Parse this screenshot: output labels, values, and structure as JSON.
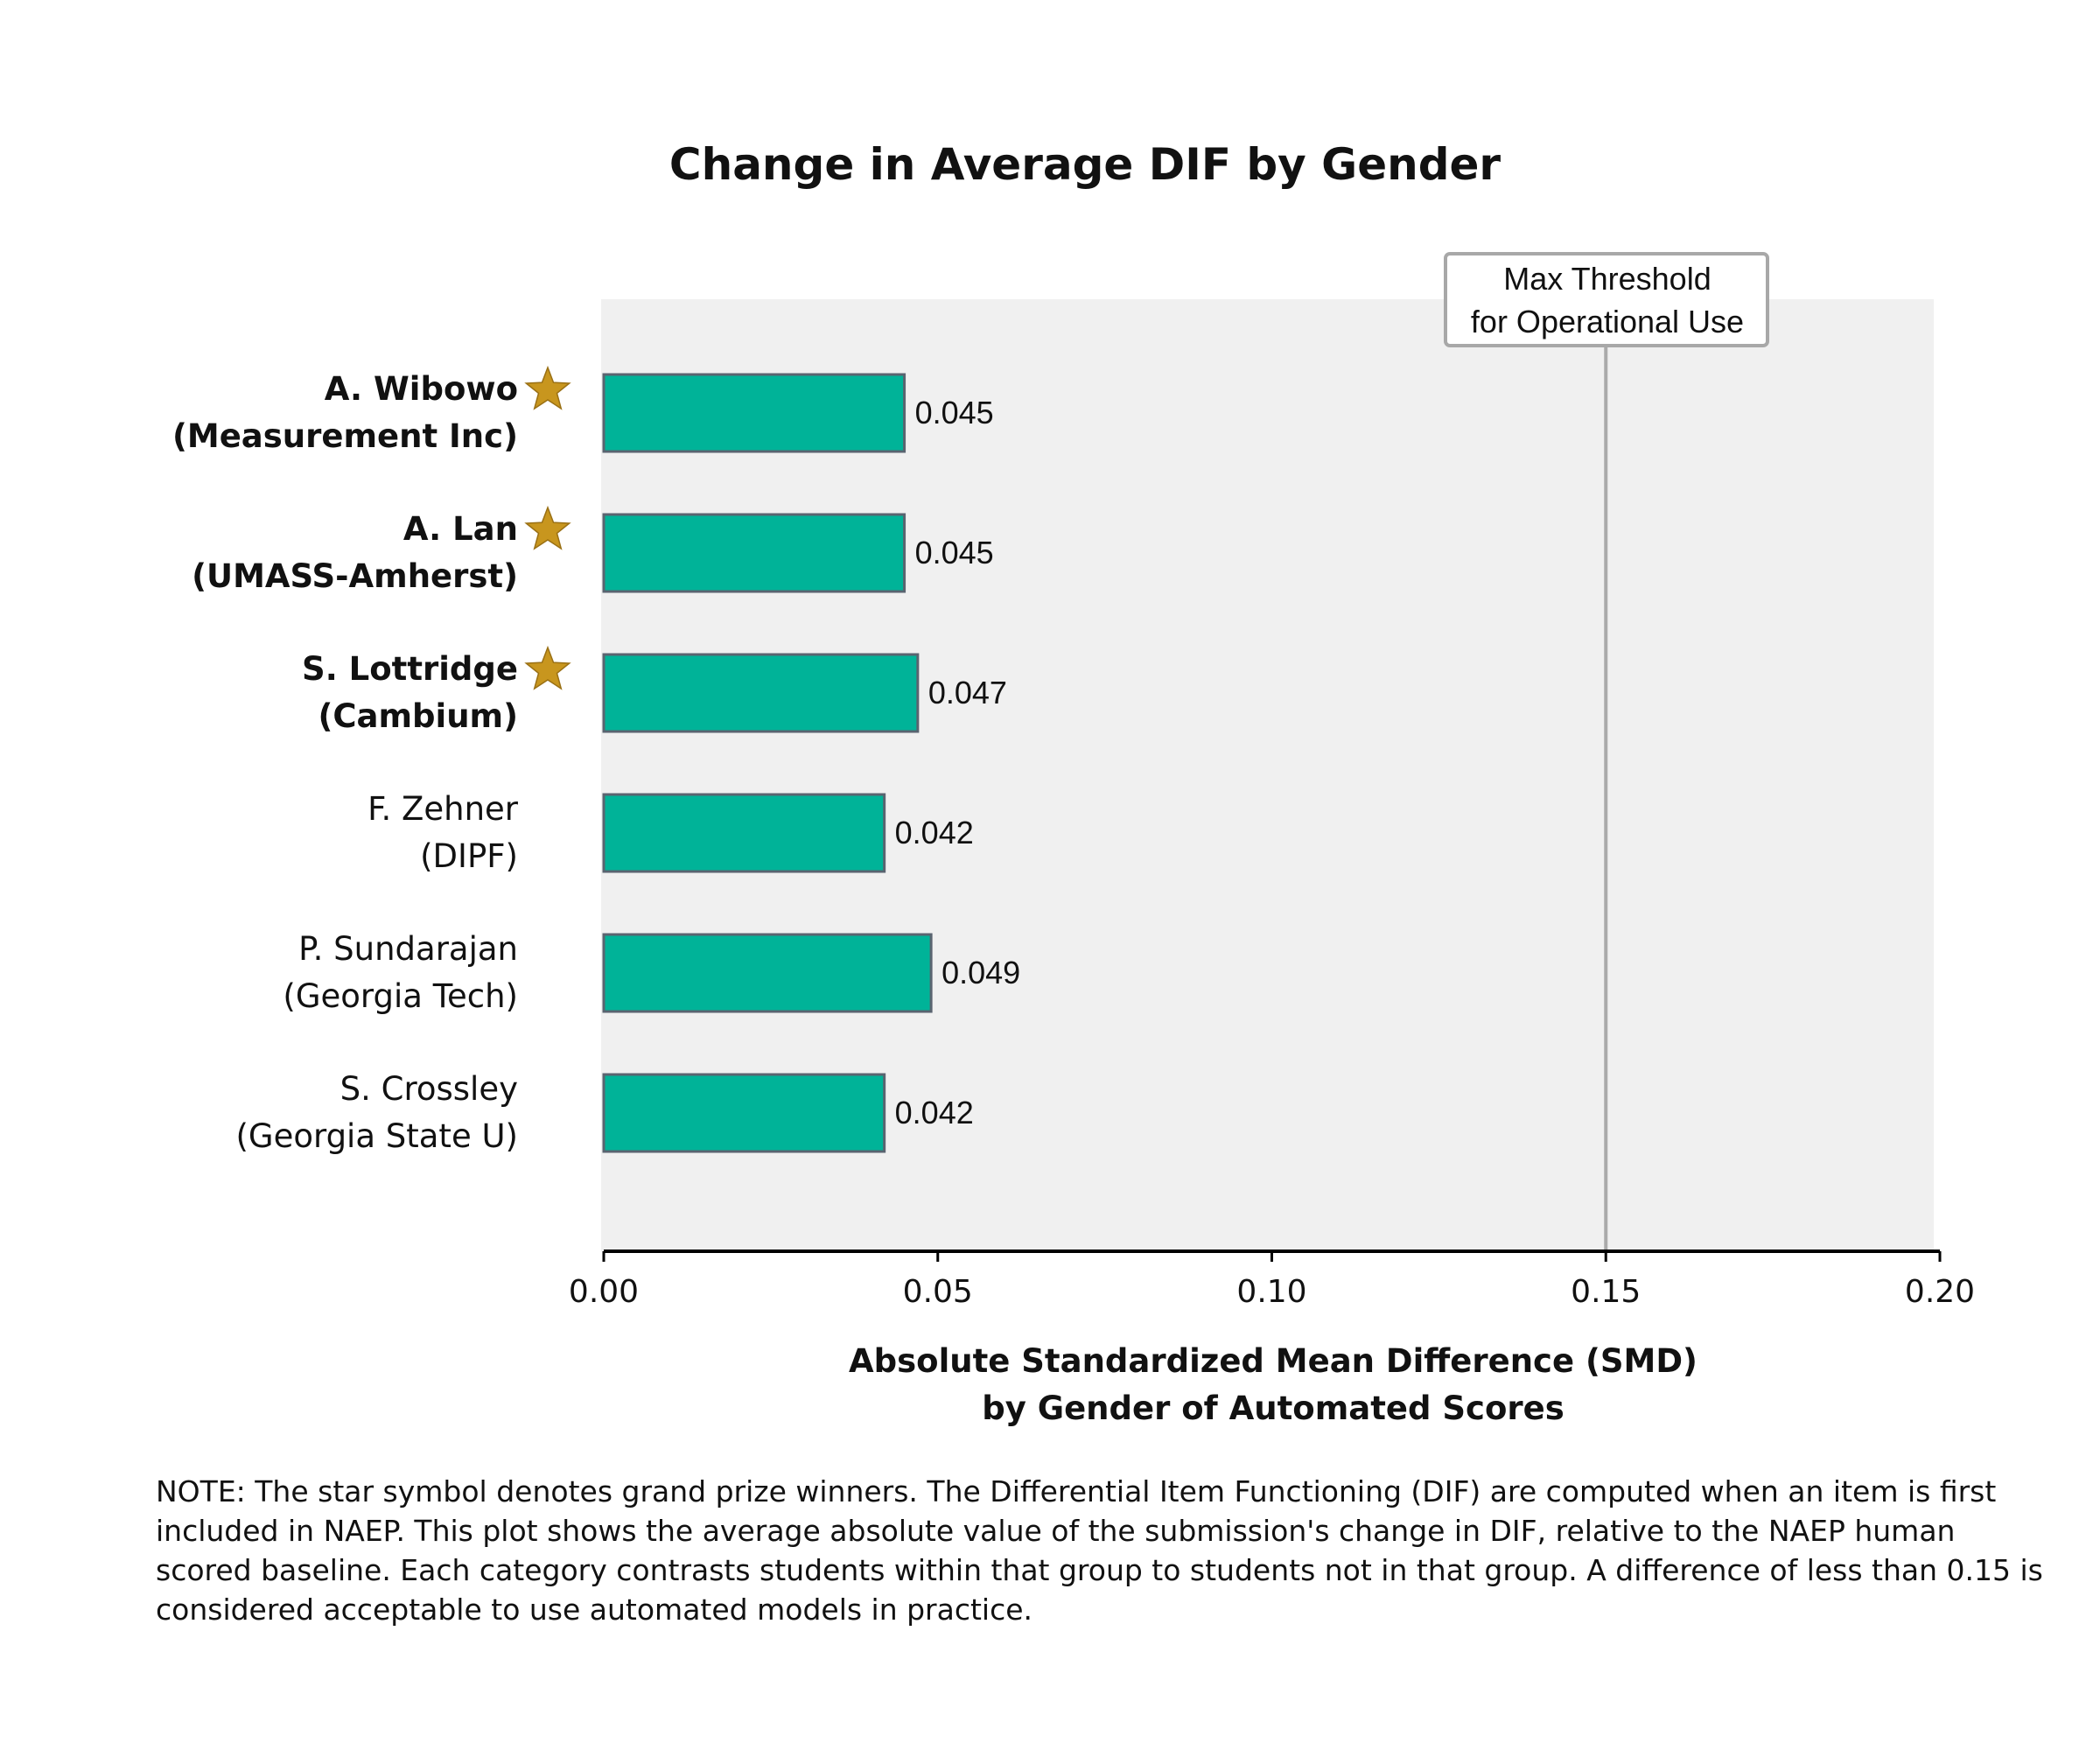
{
  "chart_data": {
    "type": "bar",
    "orientation": "horizontal",
    "title": "Change in Average DIF by Gender",
    "xlabel": [
      "Absolute Standardized Mean Difference (SMD)",
      "by Gender of Automated Scores"
    ],
    "xlim": [
      0,
      0.2
    ],
    "xticks": [
      "0.00",
      "0.05",
      "0.10",
      "0.15",
      "0.20"
    ],
    "grid": false,
    "bar_color": "#00b398",
    "bar_edge_color": "#5a6470",
    "plot_background": "#f0f0f0",
    "star_color": "#c8961e",
    "categories": [
      {
        "name": "A. Wibowo",
        "org": "(Measurement Inc)",
        "value": 0.045,
        "value_label": "0.045",
        "winner": true
      },
      {
        "name": "A. Lan",
        "org": "(UMASS-Amherst)",
        "value": 0.045,
        "value_label": "0.045",
        "winner": true
      },
      {
        "name": "S. Lottridge",
        "org": "(Cambium)",
        "value": 0.047,
        "value_label": "0.047",
        "winner": true
      },
      {
        "name": "F. Zehner",
        "org": "(DIPF)",
        "value": 0.042,
        "value_label": "0.042",
        "winner": false
      },
      {
        "name": "P. Sundarajan",
        "org": "(Georgia Tech)",
        "value": 0.049,
        "value_label": "0.049",
        "winner": false
      },
      {
        "name": "S. Crossley",
        "org": "(Georgia State U)",
        "value": 0.042,
        "value_label": "0.042",
        "winner": false
      }
    ],
    "threshold": {
      "value": 0.15,
      "label": [
        "Max Threshold",
        "for Operational Use"
      ],
      "line_color": "#aaaaaa"
    }
  },
  "note": "NOTE: The star symbol denotes grand prize winners. The Differential Item Functioning (DIF) are computed when an item is first included in NAEP. This plot shows the average absolute value of the submission's change in DIF, relative to the NAEP human scored baseline. Each category contrasts students within that group to students not in that group. A difference of less than 0.15 is considered acceptable to use automated models in practice."
}
